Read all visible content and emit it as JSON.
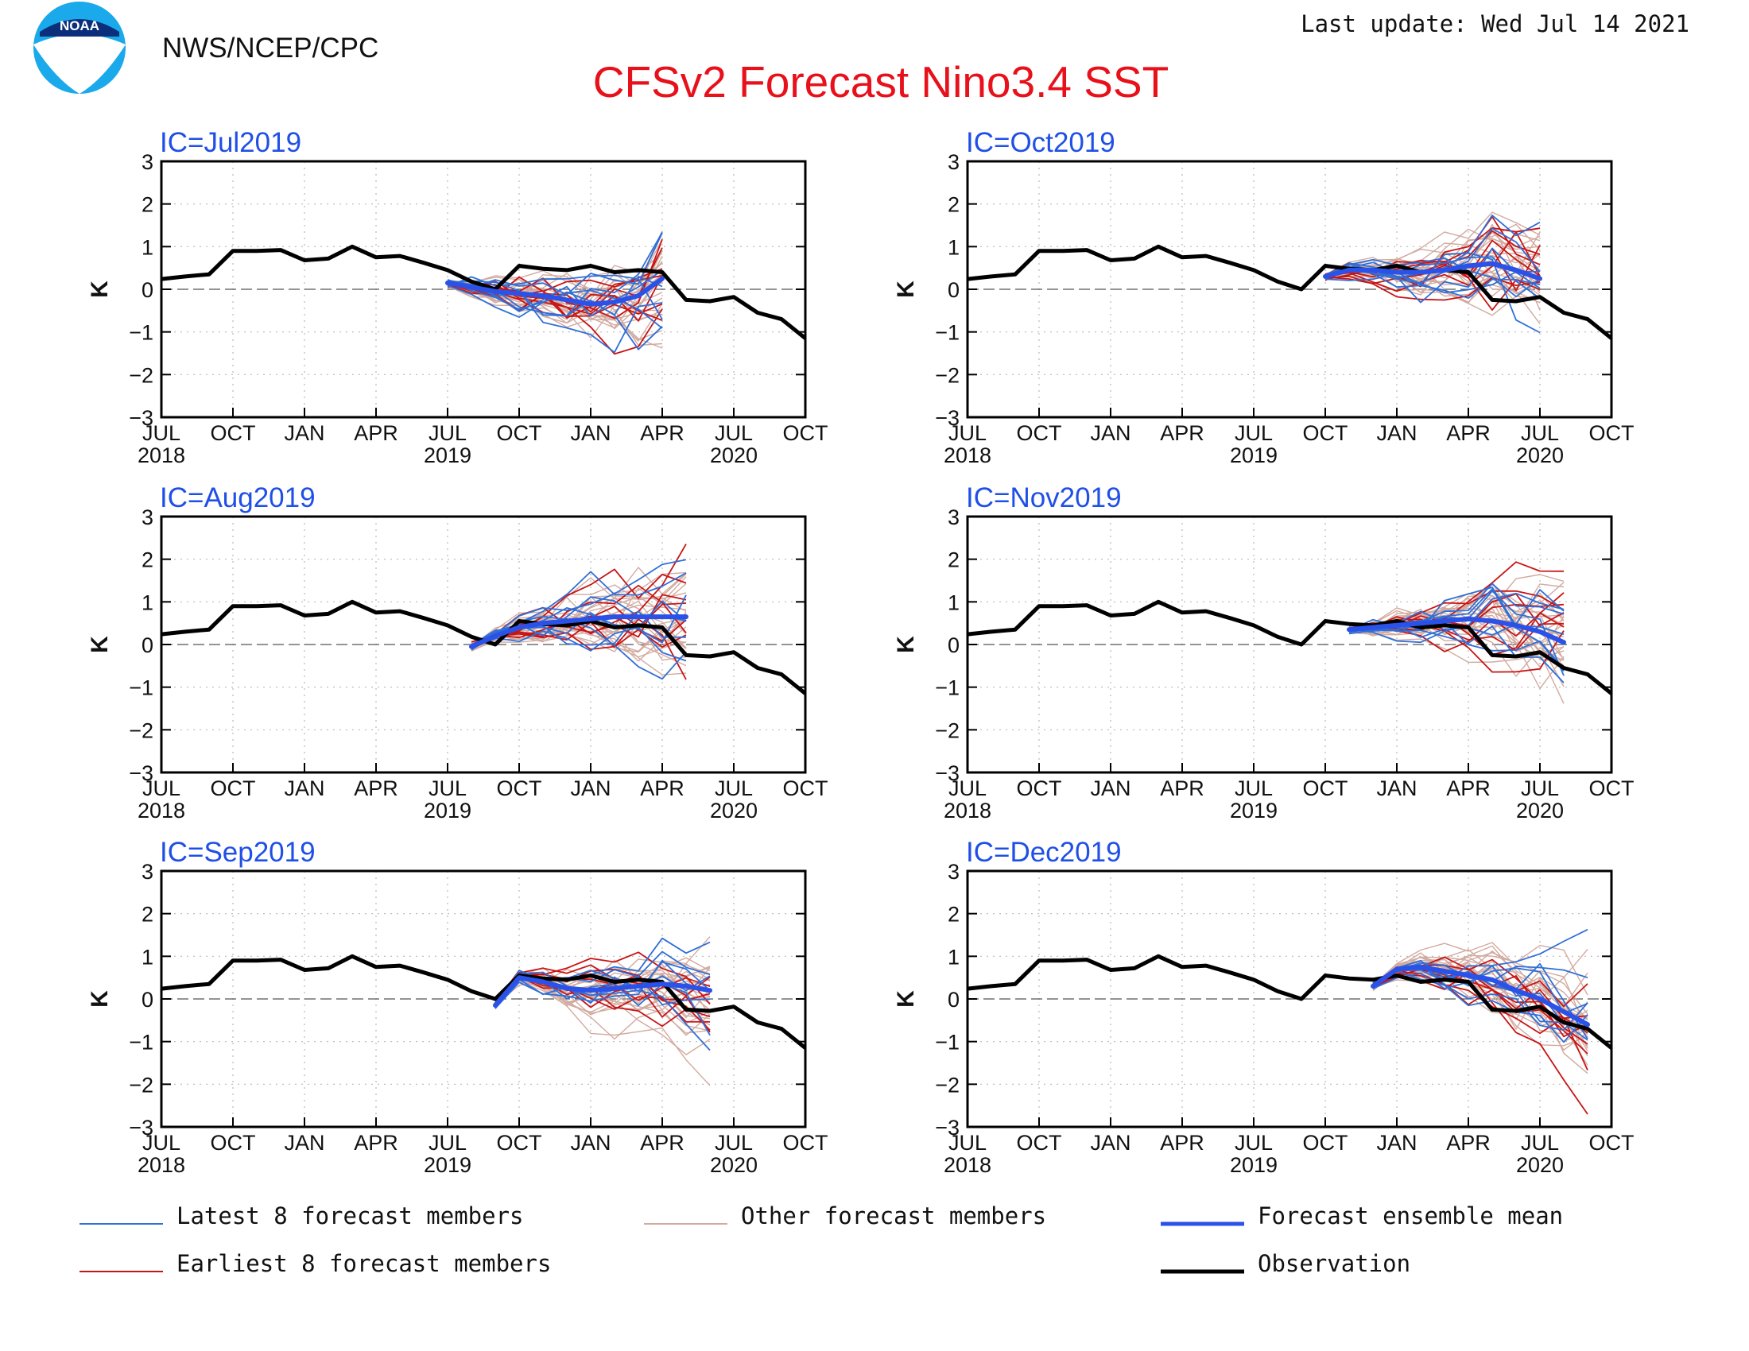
{
  "header": {
    "agency": "NWS/NCEP/CPC",
    "title": "CFSv2 Forecast Nino3.4 SST",
    "last_update": "Last update: Wed Jul 14 2021",
    "logo_text": "NOAA"
  },
  "axes": {
    "ylabel": "K",
    "yticks": [
      "3",
      "2",
      "1",
      "0",
      "−1",
      "−2",
      "−3"
    ],
    "xticks": [
      "JUL",
      "OCT",
      "JAN",
      "APR",
      "JUL",
      "OCT",
      "JAN",
      "APR",
      "JUL",
      "OCT"
    ],
    "years": [
      "2018",
      "2019",
      "2020"
    ]
  },
  "legend": {
    "latest": "Latest 8 forecast members",
    "other": "Other forecast members",
    "mean": "Forecast ensemble mean",
    "earliest": "Earliest 8 forecast members",
    "obs": "Observation"
  },
  "colors": {
    "title": "#e8101a",
    "ic_label": "#1f4fe6",
    "latest": "#2f6fd8",
    "earliest": "#c81414",
    "other": "#d2aaa0",
    "mean": "#2a52e8",
    "observation": "#000000"
  },
  "chart_data": [
    {
      "type": "line",
      "ic": "IC=Jul2019",
      "x": [
        "2018-07",
        "2018-08",
        "2018-09",
        "2018-10",
        "2018-11",
        "2018-12",
        "2019-01",
        "2019-02",
        "2019-03",
        "2019-04",
        "2019-05",
        "2019-06",
        "2019-07",
        "2019-08",
        "2019-09",
        "2019-10",
        "2019-11",
        "2019-12",
        "2020-01",
        "2020-02",
        "2020-03",
        "2020-04",
        "2020-05",
        "2020-06",
        "2020-07",
        "2020-08",
        "2020-09",
        "2020-10"
      ],
      "observation": [
        0.24,
        0.3,
        0.35,
        0.9,
        0.9,
        0.92,
        0.68,
        0.72,
        1.0,
        0.75,
        0.78,
        0.62,
        0.45,
        0.18,
        0.0,
        0.55,
        0.48,
        0.45,
        0.55,
        0.4,
        0.45,
        0.4,
        -0.25,
        -0.28,
        -0.18,
        -0.55,
        -0.7,
        -1.15
      ],
      "series": [
        {
          "kind": "mean",
          "x": [
            "2019-07",
            "2019-08",
            "2019-09",
            "2019-10",
            "2019-11",
            "2019-12",
            "2020-01",
            "2020-02",
            "2020-03",
            "2020-04"
          ],
          "values": [
            0.15,
            0.05,
            -0.05,
            -0.1,
            -0.15,
            -0.25,
            -0.35,
            -0.3,
            -0.15,
            0.25
          ]
        }
      ],
      "ylim": [
        -3,
        3
      ]
    },
    {
      "type": "line",
      "ic": "IC=Oct2019",
      "x": [
        "2018-07",
        "2018-08",
        "2018-09",
        "2018-10",
        "2018-11",
        "2018-12",
        "2019-01",
        "2019-02",
        "2019-03",
        "2019-04",
        "2019-05",
        "2019-06",
        "2019-07",
        "2019-08",
        "2019-09",
        "2019-10",
        "2019-11",
        "2019-12",
        "2020-01",
        "2020-02",
        "2020-03",
        "2020-04",
        "2020-05",
        "2020-06",
        "2020-07",
        "2020-08",
        "2020-09",
        "2020-10"
      ],
      "observation": [
        0.24,
        0.3,
        0.35,
        0.9,
        0.9,
        0.92,
        0.68,
        0.72,
        1.0,
        0.75,
        0.78,
        0.62,
        0.45,
        0.18,
        0.0,
        0.55,
        0.48,
        0.45,
        0.55,
        0.4,
        0.45,
        0.4,
        -0.25,
        -0.28,
        -0.18,
        -0.55,
        -0.7,
        -1.15
      ],
      "series": [
        {
          "kind": "mean",
          "x": [
            "2019-10",
            "2019-11",
            "2019-12",
            "2020-01",
            "2020-02",
            "2020-03",
            "2020-04",
            "2020-05",
            "2020-06",
            "2020-07"
          ],
          "values": [
            0.3,
            0.45,
            0.45,
            0.4,
            0.4,
            0.45,
            0.55,
            0.6,
            0.45,
            0.25
          ]
        }
      ],
      "ylim": [
        -3,
        3
      ]
    },
    {
      "type": "line",
      "ic": "IC=Aug2019",
      "x": [
        "2018-07",
        "2018-08",
        "2018-09",
        "2018-10",
        "2018-11",
        "2018-12",
        "2019-01",
        "2019-02",
        "2019-03",
        "2019-04",
        "2019-05",
        "2019-06",
        "2019-07",
        "2019-08",
        "2019-09",
        "2019-10",
        "2019-11",
        "2019-12",
        "2020-01",
        "2020-02",
        "2020-03",
        "2020-04",
        "2020-05",
        "2020-06",
        "2020-07",
        "2020-08",
        "2020-09",
        "2020-10"
      ],
      "observation": [
        0.24,
        0.3,
        0.35,
        0.9,
        0.9,
        0.92,
        0.68,
        0.72,
        1.0,
        0.75,
        0.78,
        0.62,
        0.45,
        0.18,
        0.0,
        0.55,
        0.48,
        0.45,
        0.55,
        0.4,
        0.45,
        0.4,
        -0.25,
        -0.28,
        -0.18,
        -0.55,
        -0.7,
        -1.15
      ],
      "series": [
        {
          "kind": "mean",
          "x": [
            "2019-08",
            "2019-09",
            "2019-10",
            "2019-11",
            "2019-12",
            "2020-01",
            "2020-02",
            "2020-03",
            "2020-04",
            "2020-05"
          ],
          "values": [
            -0.05,
            0.2,
            0.4,
            0.5,
            0.55,
            0.6,
            0.65,
            0.65,
            0.65,
            0.65
          ]
        }
      ],
      "ylim": [
        -3,
        3
      ]
    },
    {
      "type": "line",
      "ic": "IC=Nov2019",
      "x": [
        "2018-07",
        "2018-08",
        "2018-09",
        "2018-10",
        "2018-11",
        "2018-12",
        "2019-01",
        "2019-02",
        "2019-03",
        "2019-04",
        "2019-05",
        "2019-06",
        "2019-07",
        "2019-08",
        "2019-09",
        "2019-10",
        "2019-11",
        "2019-12",
        "2020-01",
        "2020-02",
        "2020-03",
        "2020-04",
        "2020-05",
        "2020-06",
        "2020-07",
        "2020-08",
        "2020-09",
        "2020-10"
      ],
      "observation": [
        0.24,
        0.3,
        0.35,
        0.9,
        0.9,
        0.92,
        0.68,
        0.72,
        1.0,
        0.75,
        0.78,
        0.62,
        0.45,
        0.18,
        0.0,
        0.55,
        0.48,
        0.45,
        0.55,
        0.4,
        0.45,
        0.4,
        -0.25,
        -0.28,
        -0.18,
        -0.55,
        -0.7,
        -1.15
      ],
      "series": [
        {
          "kind": "mean",
          "x": [
            "2019-11",
            "2019-12",
            "2020-01",
            "2020-02",
            "2020-03",
            "2020-04",
            "2020-05",
            "2020-06",
            "2020-07",
            "2020-08"
          ],
          "values": [
            0.35,
            0.4,
            0.45,
            0.5,
            0.55,
            0.6,
            0.55,
            0.45,
            0.3,
            0.05
          ]
        }
      ],
      "ylim": [
        -3,
        3
      ]
    },
    {
      "type": "line",
      "ic": "IC=Sep2019",
      "x": [
        "2018-07",
        "2018-08",
        "2018-09",
        "2018-10",
        "2018-11",
        "2018-12",
        "2019-01",
        "2019-02",
        "2019-03",
        "2019-04",
        "2019-05",
        "2019-06",
        "2019-07",
        "2019-08",
        "2019-09",
        "2019-10",
        "2019-11",
        "2019-12",
        "2020-01",
        "2020-02",
        "2020-03",
        "2020-04",
        "2020-05",
        "2020-06",
        "2020-07",
        "2020-08",
        "2020-09",
        "2020-10"
      ],
      "observation": [
        0.24,
        0.3,
        0.35,
        0.9,
        0.9,
        0.92,
        0.68,
        0.72,
        1.0,
        0.75,
        0.78,
        0.62,
        0.45,
        0.18,
        0.0,
        0.55,
        0.48,
        0.45,
        0.55,
        0.4,
        0.45,
        0.4,
        -0.25,
        -0.28,
        -0.18,
        -0.55,
        -0.7,
        -1.15
      ],
      "series": [
        {
          "kind": "mean",
          "x": [
            "2019-09",
            "2019-10",
            "2019-11",
            "2019-12",
            "2020-01",
            "2020-02",
            "2020-03",
            "2020-04",
            "2020-05",
            "2020-06"
          ],
          "values": [
            -0.15,
            0.5,
            0.4,
            0.25,
            0.2,
            0.25,
            0.3,
            0.35,
            0.3,
            0.2
          ]
        }
      ],
      "ylim": [
        -3,
        3
      ]
    },
    {
      "type": "line",
      "ic": "IC=Dec2019",
      "x": [
        "2018-07",
        "2018-08",
        "2018-09",
        "2018-10",
        "2018-11",
        "2018-12",
        "2019-01",
        "2019-02",
        "2019-03",
        "2019-04",
        "2019-05",
        "2019-06",
        "2019-07",
        "2019-08",
        "2019-09",
        "2019-10",
        "2019-11",
        "2019-12",
        "2020-01",
        "2020-02",
        "2020-03",
        "2020-04",
        "2020-05",
        "2020-06",
        "2020-07",
        "2020-08",
        "2020-09",
        "2020-10"
      ],
      "observation": [
        0.24,
        0.3,
        0.35,
        0.9,
        0.9,
        0.92,
        0.68,
        0.72,
        1.0,
        0.75,
        0.78,
        0.62,
        0.45,
        0.18,
        0.0,
        0.55,
        0.48,
        0.45,
        0.55,
        0.4,
        0.45,
        0.4,
        -0.25,
        -0.28,
        -0.18,
        -0.55,
        -0.7,
        -1.15
      ],
      "series": [
        {
          "kind": "mean",
          "x": [
            "2019-12",
            "2020-01",
            "2020-02",
            "2020-03",
            "2020-04",
            "2020-05",
            "2020-06",
            "2020-07",
            "2020-08",
            "2020-09"
          ],
          "values": [
            0.3,
            0.7,
            0.75,
            0.65,
            0.55,
            0.45,
            0.2,
            0.0,
            -0.3,
            -0.6
          ]
        }
      ],
      "ylim": [
        -3,
        3
      ]
    }
  ]
}
